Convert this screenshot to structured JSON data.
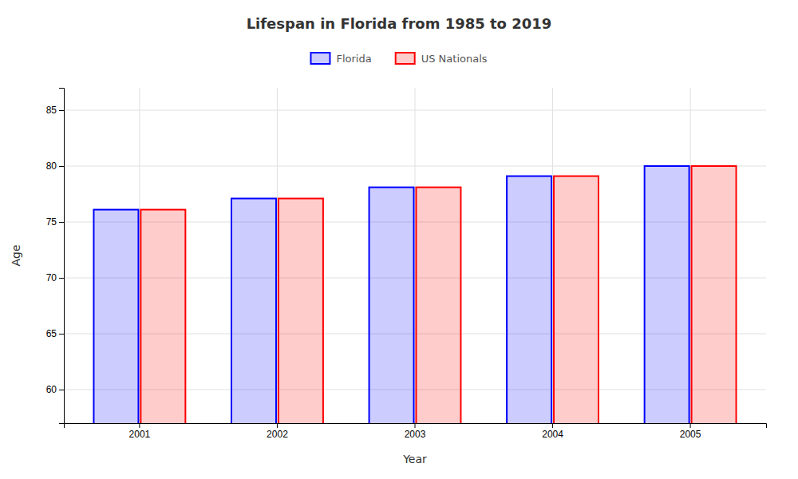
{
  "chart_data": {
    "type": "bar",
    "title": "Lifespan in Florida from 1985 to 2019",
    "x_label": "Year",
    "y_label": "Age",
    "categories": [
      "2001",
      "2002",
      "2003",
      "2004",
      "2005"
    ],
    "series": [
      {
        "name": "Florida",
        "color": "#0000ff",
        "values": [
          76.1,
          77.1,
          78.1,
          79.1,
          80.0
        ]
      },
      {
        "name": "US Nationals",
        "color": "#ff0000",
        "values": [
          76.1,
          77.1,
          78.1,
          79.1,
          80.0
        ]
      }
    ],
    "ylim": [
      57,
      87
    ],
    "yticks": [
      60,
      65,
      70,
      75,
      80,
      85
    ],
    "grid": true,
    "legend": "top"
  }
}
